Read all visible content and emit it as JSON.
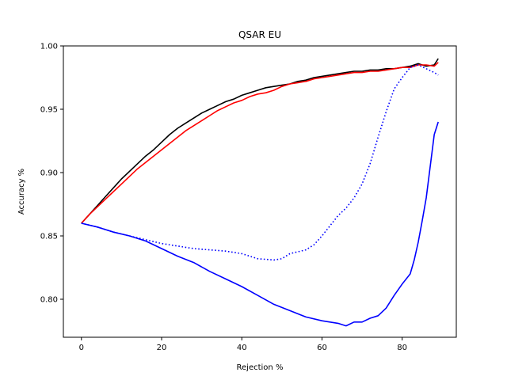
{
  "chart_data": {
    "type": "line",
    "title": "QSAR EU",
    "xlabel": "Rejection %",
    "ylabel": "Accuracy %",
    "xlim": [
      -4.5,
      93.5
    ],
    "ylim": [
      0.77,
      1.0
    ],
    "xticks": [
      0,
      20,
      40,
      60,
      80
    ],
    "yticks": [
      0.8,
      0.85,
      0.9,
      0.95,
      1.0
    ],
    "xtick_labels": [
      "0",
      "20",
      "40",
      "60",
      "80"
    ],
    "ytick_labels": [
      "0.80",
      "0.85",
      "0.90",
      "0.95",
      "1.00"
    ],
    "grid": false,
    "legend": null,
    "series": [
      {
        "color": "#000000",
        "style": "solid",
        "x": [
          0,
          2,
          4,
          6,
          8,
          10,
          12,
          14,
          16,
          18,
          20,
          22,
          24,
          26,
          28,
          30,
          32,
          34,
          36,
          38,
          40,
          42,
          44,
          46,
          48,
          50,
          52,
          54,
          56,
          58,
          60,
          62,
          64,
          66,
          68,
          70,
          72,
          74,
          76,
          78,
          80,
          82,
          84,
          86,
          88,
          89
        ],
        "y": [
          0.86,
          0.867,
          0.874,
          0.881,
          0.888,
          0.895,
          0.901,
          0.907,
          0.913,
          0.918,
          0.924,
          0.93,
          0.935,
          0.939,
          0.943,
          0.947,
          0.95,
          0.953,
          0.956,
          0.958,
          0.961,
          0.963,
          0.965,
          0.967,
          0.968,
          0.969,
          0.97,
          0.972,
          0.973,
          0.975,
          0.976,
          0.977,
          0.978,
          0.979,
          0.98,
          0.98,
          0.981,
          0.981,
          0.982,
          0.982,
          0.983,
          0.984,
          0.986,
          0.984,
          0.985,
          0.99
        ]
      },
      {
        "color": "#ff0000",
        "style": "solid",
        "x": [
          0,
          2,
          4,
          6,
          8,
          10,
          12,
          14,
          16,
          18,
          20,
          22,
          24,
          26,
          28,
          30,
          32,
          34,
          36,
          38,
          40,
          42,
          44,
          46,
          48,
          50,
          52,
          54,
          56,
          58,
          60,
          62,
          64,
          66,
          68,
          70,
          72,
          74,
          76,
          78,
          80,
          82,
          84,
          86,
          88,
          89
        ],
        "y": [
          0.86,
          0.867,
          0.873,
          0.879,
          0.885,
          0.891,
          0.897,
          0.903,
          0.908,
          0.913,
          0.918,
          0.923,
          0.928,
          0.933,
          0.937,
          0.941,
          0.945,
          0.949,
          0.952,
          0.955,
          0.957,
          0.96,
          0.962,
          0.963,
          0.965,
          0.968,
          0.97,
          0.971,
          0.972,
          0.974,
          0.975,
          0.976,
          0.977,
          0.978,
          0.979,
          0.979,
          0.98,
          0.98,
          0.981,
          0.982,
          0.983,
          0.983,
          0.985,
          0.985,
          0.984,
          0.987
        ]
      },
      {
        "color": "#0000ff",
        "style": "dotted",
        "x": [
          0,
          4,
          8,
          12,
          16,
          20,
          24,
          28,
          32,
          36,
          40,
          44,
          48,
          50,
          52,
          56,
          58,
          60,
          62,
          64,
          66,
          68,
          70,
          72,
          74,
          76,
          78,
          80,
          82,
          84,
          86,
          88,
          89
        ],
        "y": [
          0.86,
          0.857,
          0.853,
          0.85,
          0.847,
          0.844,
          0.842,
          0.84,
          0.839,
          0.838,
          0.836,
          0.832,
          0.831,
          0.832,
          0.836,
          0.839,
          0.843,
          0.85,
          0.858,
          0.866,
          0.872,
          0.88,
          0.891,
          0.907,
          0.928,
          0.948,
          0.966,
          0.975,
          0.983,
          0.985,
          0.982,
          0.979,
          0.977
        ]
      },
      {
        "color": "#0000ff",
        "style": "solid",
        "x": [
          0,
          4,
          8,
          12,
          16,
          20,
          24,
          28,
          32,
          36,
          40,
          44,
          48,
          52,
          56,
          60,
          64,
          66,
          68,
          70,
          72,
          74,
          76,
          78,
          80,
          82,
          83,
          84,
          85,
          86,
          87,
          88,
          89
        ],
        "y": [
          0.86,
          0.857,
          0.853,
          0.85,
          0.846,
          0.84,
          0.834,
          0.829,
          0.822,
          0.816,
          0.81,
          0.803,
          0.796,
          0.791,
          0.786,
          0.783,
          0.781,
          0.779,
          0.782,
          0.782,
          0.785,
          0.787,
          0.793,
          0.803,
          0.812,
          0.82,
          0.831,
          0.845,
          0.862,
          0.88,
          0.905,
          0.93,
          0.94
        ]
      }
    ]
  }
}
